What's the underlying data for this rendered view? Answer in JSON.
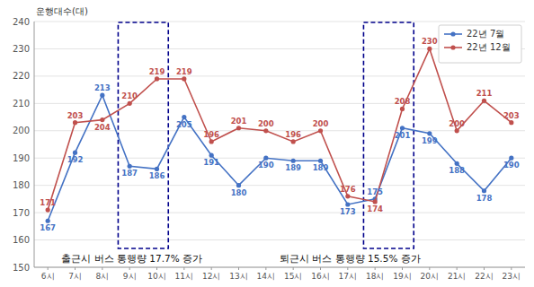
{
  "chart_data": {
    "type": "line",
    "y_label": "운행대수(대)",
    "categories": [
      "6시",
      "7시",
      "8시",
      "9시",
      "10시",
      "11시",
      "12시",
      "13시",
      "14시",
      "15시",
      "16시",
      "17시",
      "18시",
      "19시",
      "20시",
      "21시",
      "22시",
      "23시"
    ],
    "series": [
      {
        "name": "22년 7월",
        "color": "#4472C4",
        "marker": "circle",
        "values": [
          167,
          192,
          213,
          187,
          186,
          205,
          191,
          180,
          190,
          189,
          189,
          173,
          175,
          201,
          199,
          188,
          178,
          190
        ]
      },
      {
        "name": "22년 12월",
        "color": "#C0504D",
        "marker": "circle",
        "values": [
          171,
          203,
          204,
          210,
          219,
          219,
          196,
          201,
          200,
          196,
          200,
          176,
          174,
          208,
          230,
          200,
          211,
          203
        ]
      }
    ],
    "ylim": [
      150,
      240
    ],
    "yticks": [
      150,
      160,
      170,
      180,
      190,
      200,
      210,
      220,
      230,
      240
    ],
    "grid": true,
    "legend": "upper-right",
    "data_labels": true,
    "annotations": [
      {
        "text": "출근시 버스 통행량 17.7% 증가",
        "categories": [
          "9시",
          "10시"
        ],
        "color": "#00008B"
      },
      {
        "text": "퇴근시 버스 통행량 15.5% 증가",
        "categories": [
          "18시",
          "19시"
        ],
        "color": "#00008B"
      }
    ]
  }
}
